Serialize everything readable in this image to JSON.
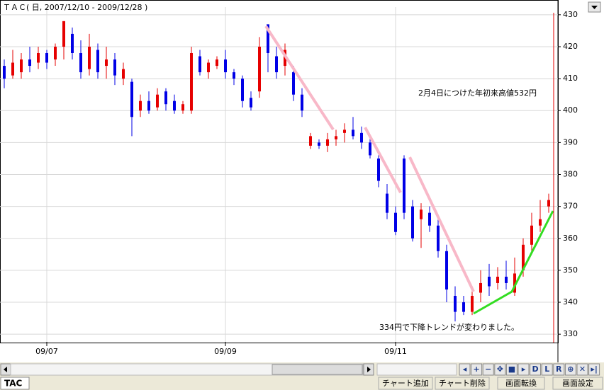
{
  "chart_data": {
    "type": "candlestick",
    "title": "ＴＡＣ( 日, 2007/12/10 - 2009/12/28 )",
    "annotations": [
      "2月4日につけた年初来高値532円",
      "334円で下降トレンドが変わりました。"
    ],
    "categories": [
      null,
      null,
      null,
      null,
      null,
      "09/07",
      null,
      null,
      null,
      null,
      null,
      null,
      null,
      null,
      null,
      null,
      null,
      null,
      null,
      null,
      null,
      null,
      null,
      null,
      null,
      null,
      "09/09",
      null,
      null,
      null,
      null,
      null,
      null,
      null,
      null,
      null,
      null,
      null,
      null,
      null,
      null,
      null,
      null,
      null,
      null,
      null,
      "09/11",
      null,
      null,
      null,
      null,
      null,
      null,
      null,
      null,
      null,
      null,
      null,
      null,
      null,
      null,
      null,
      null,
      null,
      null
    ],
    "open": [
      414,
      411,
      412,
      416,
      415,
      418,
      416,
      420,
      424,
      418,
      413,
      419,
      414,
      416,
      410,
      409,
      400,
      403,
      401,
      406,
      403,
      400,
      400,
      417,
      412,
      414,
      416,
      412,
      410,
      404,
      406,
      427,
      417,
      414,
      412,
      405,
      389,
      390,
      389,
      391,
      393,
      394,
      393,
      390,
      385,
      374,
      368,
      385,
      370,
      366,
      368,
      364,
      356,
      342,
      340,
      337,
      343,
      348,
      346,
      348,
      343,
      350,
      358,
      364,
      370
    ],
    "high": [
      416,
      419,
      418,
      420,
      420,
      419,
      421,
      428,
      426,
      422,
      424,
      421,
      420,
      418,
      415,
      410,
      405,
      406,
      407,
      407,
      405,
      403,
      420,
      419,
      416,
      417,
      419,
      413,
      411,
      406,
      423,
      427,
      420,
      421,
      414,
      407,
      393,
      391,
      393,
      394,
      396,
      398,
      395,
      392,
      386,
      377,
      370,
      386,
      372,
      371,
      370,
      366,
      358,
      345,
      342,
      344,
      350,
      352,
      351,
      353,
      354,
      360,
      368,
      372,
      374
    ],
    "low": [
      407,
      410,
      410,
      412,
      413,
      413,
      414,
      416,
      416,
      410,
      411,
      410,
      410,
      408,
      408,
      392,
      398,
      399,
      400,
      400,
      399,
      399,
      399,
      411,
      410,
      413,
      410,
      408,
      401,
      400,
      404,
      412,
      410,
      411,
      403,
      398,
      388,
      388,
      387,
      389,
      390,
      391,
      388,
      385,
      376,
      366,
      361,
      366,
      359,
      357,
      362,
      354,
      340,
      334,
      336,
      336,
      340,
      342,
      344,
      344,
      342,
      348,
      356,
      362,
      368
    ],
    "close": [
      410,
      415,
      416,
      414,
      418,
      415,
      420,
      428,
      418,
      412,
      420,
      412,
      416,
      411,
      413,
      398,
      403,
      400,
      405,
      402,
      400,
      402,
      418,
      412,
      415,
      416,
      412,
      410,
      403,
      401,
      420,
      418,
      412,
      419,
      405,
      400,
      392,
      389,
      391,
      392,
      394,
      392,
      390,
      386,
      378,
      368,
      362,
      368,
      360,
      369,
      364,
      356,
      344,
      337,
      337,
      342,
      346,
      345,
      348,
      346,
      349,
      358,
      364,
      366,
      372
    ],
    "up_color": "#e60000",
    "down_color": "#0000e6",
    "ylim": [
      327.6,
      432.4
    ],
    "yticks": [
      330,
      340,
      350,
      360,
      370,
      380,
      390,
      400,
      410,
      420,
      430
    ],
    "grid": true
  },
  "ui": {
    "symbol": "TAC",
    "nav": [
      "◂",
      "+",
      "−",
      "✥",
      "■",
      "▸",
      "D",
      "L",
      "R",
      "⊕",
      "✕",
      "▸|"
    ],
    "buttons": [
      "チャート追加",
      "チャート削除",
      "画面転換",
      "画面設定"
    ]
  }
}
